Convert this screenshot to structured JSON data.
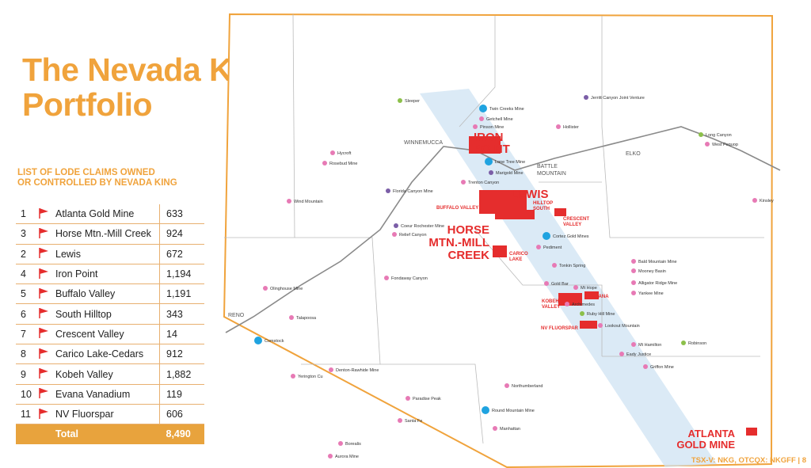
{
  "header": {
    "title": [
      "The Nevada King",
      "Portfolio"
    ],
    "subtitle": [
      "LIST OF LODE CLAIMS OWNED",
      "OR CONTROLLED BY NEVADA KING"
    ]
  },
  "table": {
    "rows": [
      [
        "1",
        "Atlanta Gold Mine",
        "633"
      ],
      [
        "3",
        "Horse Mtn.-Mill Creek",
        "924"
      ],
      [
        "2",
        "Lewis",
        "672"
      ],
      [
        "4",
        "Iron Point",
        "1,194"
      ],
      [
        "5",
        "Buffalo Valley",
        "1,191"
      ],
      [
        "6",
        "South Hilltop",
        "343"
      ],
      [
        "7",
        "Crescent Valley",
        "14"
      ],
      [
        "8",
        "Carico Lake-Cedars",
        "912"
      ],
      [
        "9",
        "Kobeh Valley",
        "1,882"
      ],
      [
        "10",
        "Evana Vanadium",
        "119"
      ],
      [
        "11",
        "NV Fluorspar",
        "606"
      ]
    ],
    "total": [
      "Total",
      "8,490"
    ]
  },
  "map": {
    "projects": [
      [
        "IRON",
        "POINT"
      ],
      [
        "LEWIS"
      ],
      [
        "HORSE",
        "MTN.-MILL",
        "CREEK"
      ],
      [
        "ATLANTA",
        "GOLD MINE"
      ],
      [
        "BUFFALO VALLEY"
      ],
      [
        "HILLTOP",
        "SOUTH"
      ],
      [
        "CRESCENT",
        "VALLEY"
      ],
      [
        "CARICO",
        "LAKE"
      ],
      [
        "KOBEH",
        "VALLEY"
      ],
      [
        "EVANA"
      ],
      [
        "NV FLUORSPAR"
      ]
    ],
    "towns": [
      "WINNEMUCCA",
      "BATTLE",
      "MOUNTAIN",
      "ELKO",
      "RENO"
    ],
    "mines": [
      "Sleeper",
      "Jerritt Canyon Joint Venture",
      "Twin Creeks Mine",
      "Getchell Mine",
      "Pinson Mine",
      "Hollister",
      "Long Canyon",
      "West Pequop",
      "Marigold Mine",
      "Lone Tree Mine",
      "Trenton Canyon",
      "Florida Canyon Mine",
      "Wind Mountain",
      "Rosebud Mine",
      "Hycroft",
      "Coeur Rochester Mine",
      "Relief Canyon",
      "Kinsley",
      "Bald Mountain Mine",
      "Mooney Basin",
      "Alligator Ridge Mine",
      "Yankee Mine",
      "Robinson",
      "Mt Hamilton",
      "Eady Justice",
      "Griffon Mine",
      "Lookout Mountain",
      "Ruby Hill Mine",
      "Archimedes",
      "Gold Bar",
      "Mt Hope",
      "Tonkin Spring",
      "Pediment",
      "Cortez Gold Mines",
      "Fondaway Canyon",
      "Olinghouse Mine",
      "Talapoosa",
      "Comstock",
      "Denton-Rawhide Mine",
      "Yerington Cu",
      "Paradise Peak",
      "Santa Fe",
      "Round Mountain Mine",
      "Northumberland",
      "Manhattan",
      "Borealis",
      "Aurora Mine"
    ]
  },
  "footer": "TSX-V: NKG, OTCQX: NKGFF | 8"
}
